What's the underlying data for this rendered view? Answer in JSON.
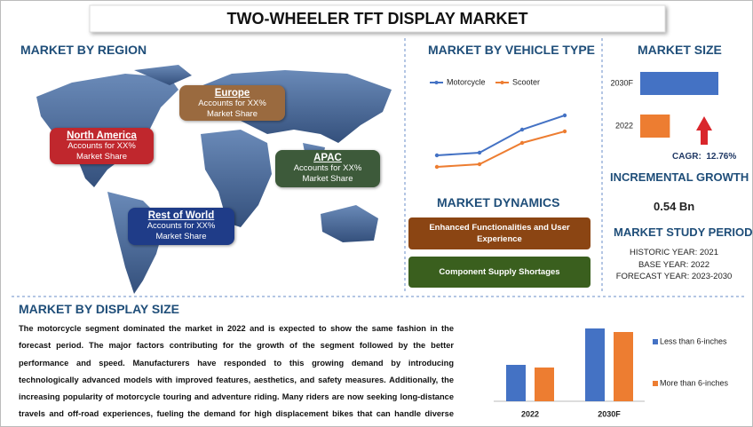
{
  "title": "TWO-WHEELER TFT DISPLAY MARKET",
  "region": {
    "heading": "MARKET BY REGION",
    "boxes": [
      {
        "name": "Europe",
        "text": "Accounts for XX% Market Share"
      },
      {
        "name": "North America",
        "text": "Accounts for XX% Market Share"
      },
      {
        "name": "APAC",
        "text": "Accounts for XX% Market Share"
      },
      {
        "name": "Rest of World",
        "text": "Accounts for XX% Market Share"
      }
    ]
  },
  "vehicle_heading": "MARKET BY VEHICLE TYPE",
  "dynamics": {
    "heading": "MARKET DYNAMICS",
    "items": [
      "Enhanced Functionalities and User Experience",
      "Component Supply Shortages"
    ]
  },
  "size": {
    "heading": "MARKET SIZE",
    "cagr_label": "CAGR:",
    "cagr": "12.76%"
  },
  "incremental": {
    "heading": "INCREMENTAL GROWTH",
    "value": "0.54 Bn"
  },
  "study": {
    "heading": "MARKET STUDY PERIOD",
    "lines": [
      "HISTORIC YEAR: 2021",
      "BASE YEAR: 2022",
      "FORECAST YEAR: 2023-2030"
    ]
  },
  "display": {
    "heading": "MARKET BY DISPLAY SIZE",
    "paragraph": "The motorcycle segment dominated the market in 2022 and is expected to show the same fashion in the forecast period. The major factors contributing for the growth of the segment followed by the better performance and speed. Manufacturers have responded to this growing demand by introducing technologically advanced models with improved features, aesthetics, and safety measures. Additionally, the increasing popularity of motorcycle touring and adventure riding. Many riders are now seeking long-distance travels and off-road experiences, fueling the demand for high displacement bikes that can handle diverse terrains."
  },
  "chart_data": [
    {
      "type": "line",
      "categories": [
        null,
        null,
        null,
        null
      ],
      "series": [
        {
          "name": "Motorcycle",
          "color": "#4472c4",
          "values": [
            1.4,
            1.7,
            4.3,
            5.9
          ]
        },
        {
          "name": "Scooter",
          "color": "#ed7d31",
          "values": [
            0.1,
            0.4,
            2.8,
            4.1
          ]
        }
      ]
    },
    {
      "type": "hbar",
      "categories": [
        "2030F",
        "2022"
      ],
      "values": [
        0.87,
        0.33
      ],
      "colors": [
        "#4472c4",
        "#ed7d31"
      ]
    },
    {
      "type": "bar",
      "categories": [
        "2022",
        "2030F"
      ],
      "series": [
        {
          "name": "Less than 6-inches",
          "color": "#4472c4",
          "values": [
            41,
            82
          ]
        },
        {
          "name": "More than 6-inches",
          "color": "#ed7d31",
          "values": [
            38,
            78
          ]
        }
      ]
    }
  ]
}
